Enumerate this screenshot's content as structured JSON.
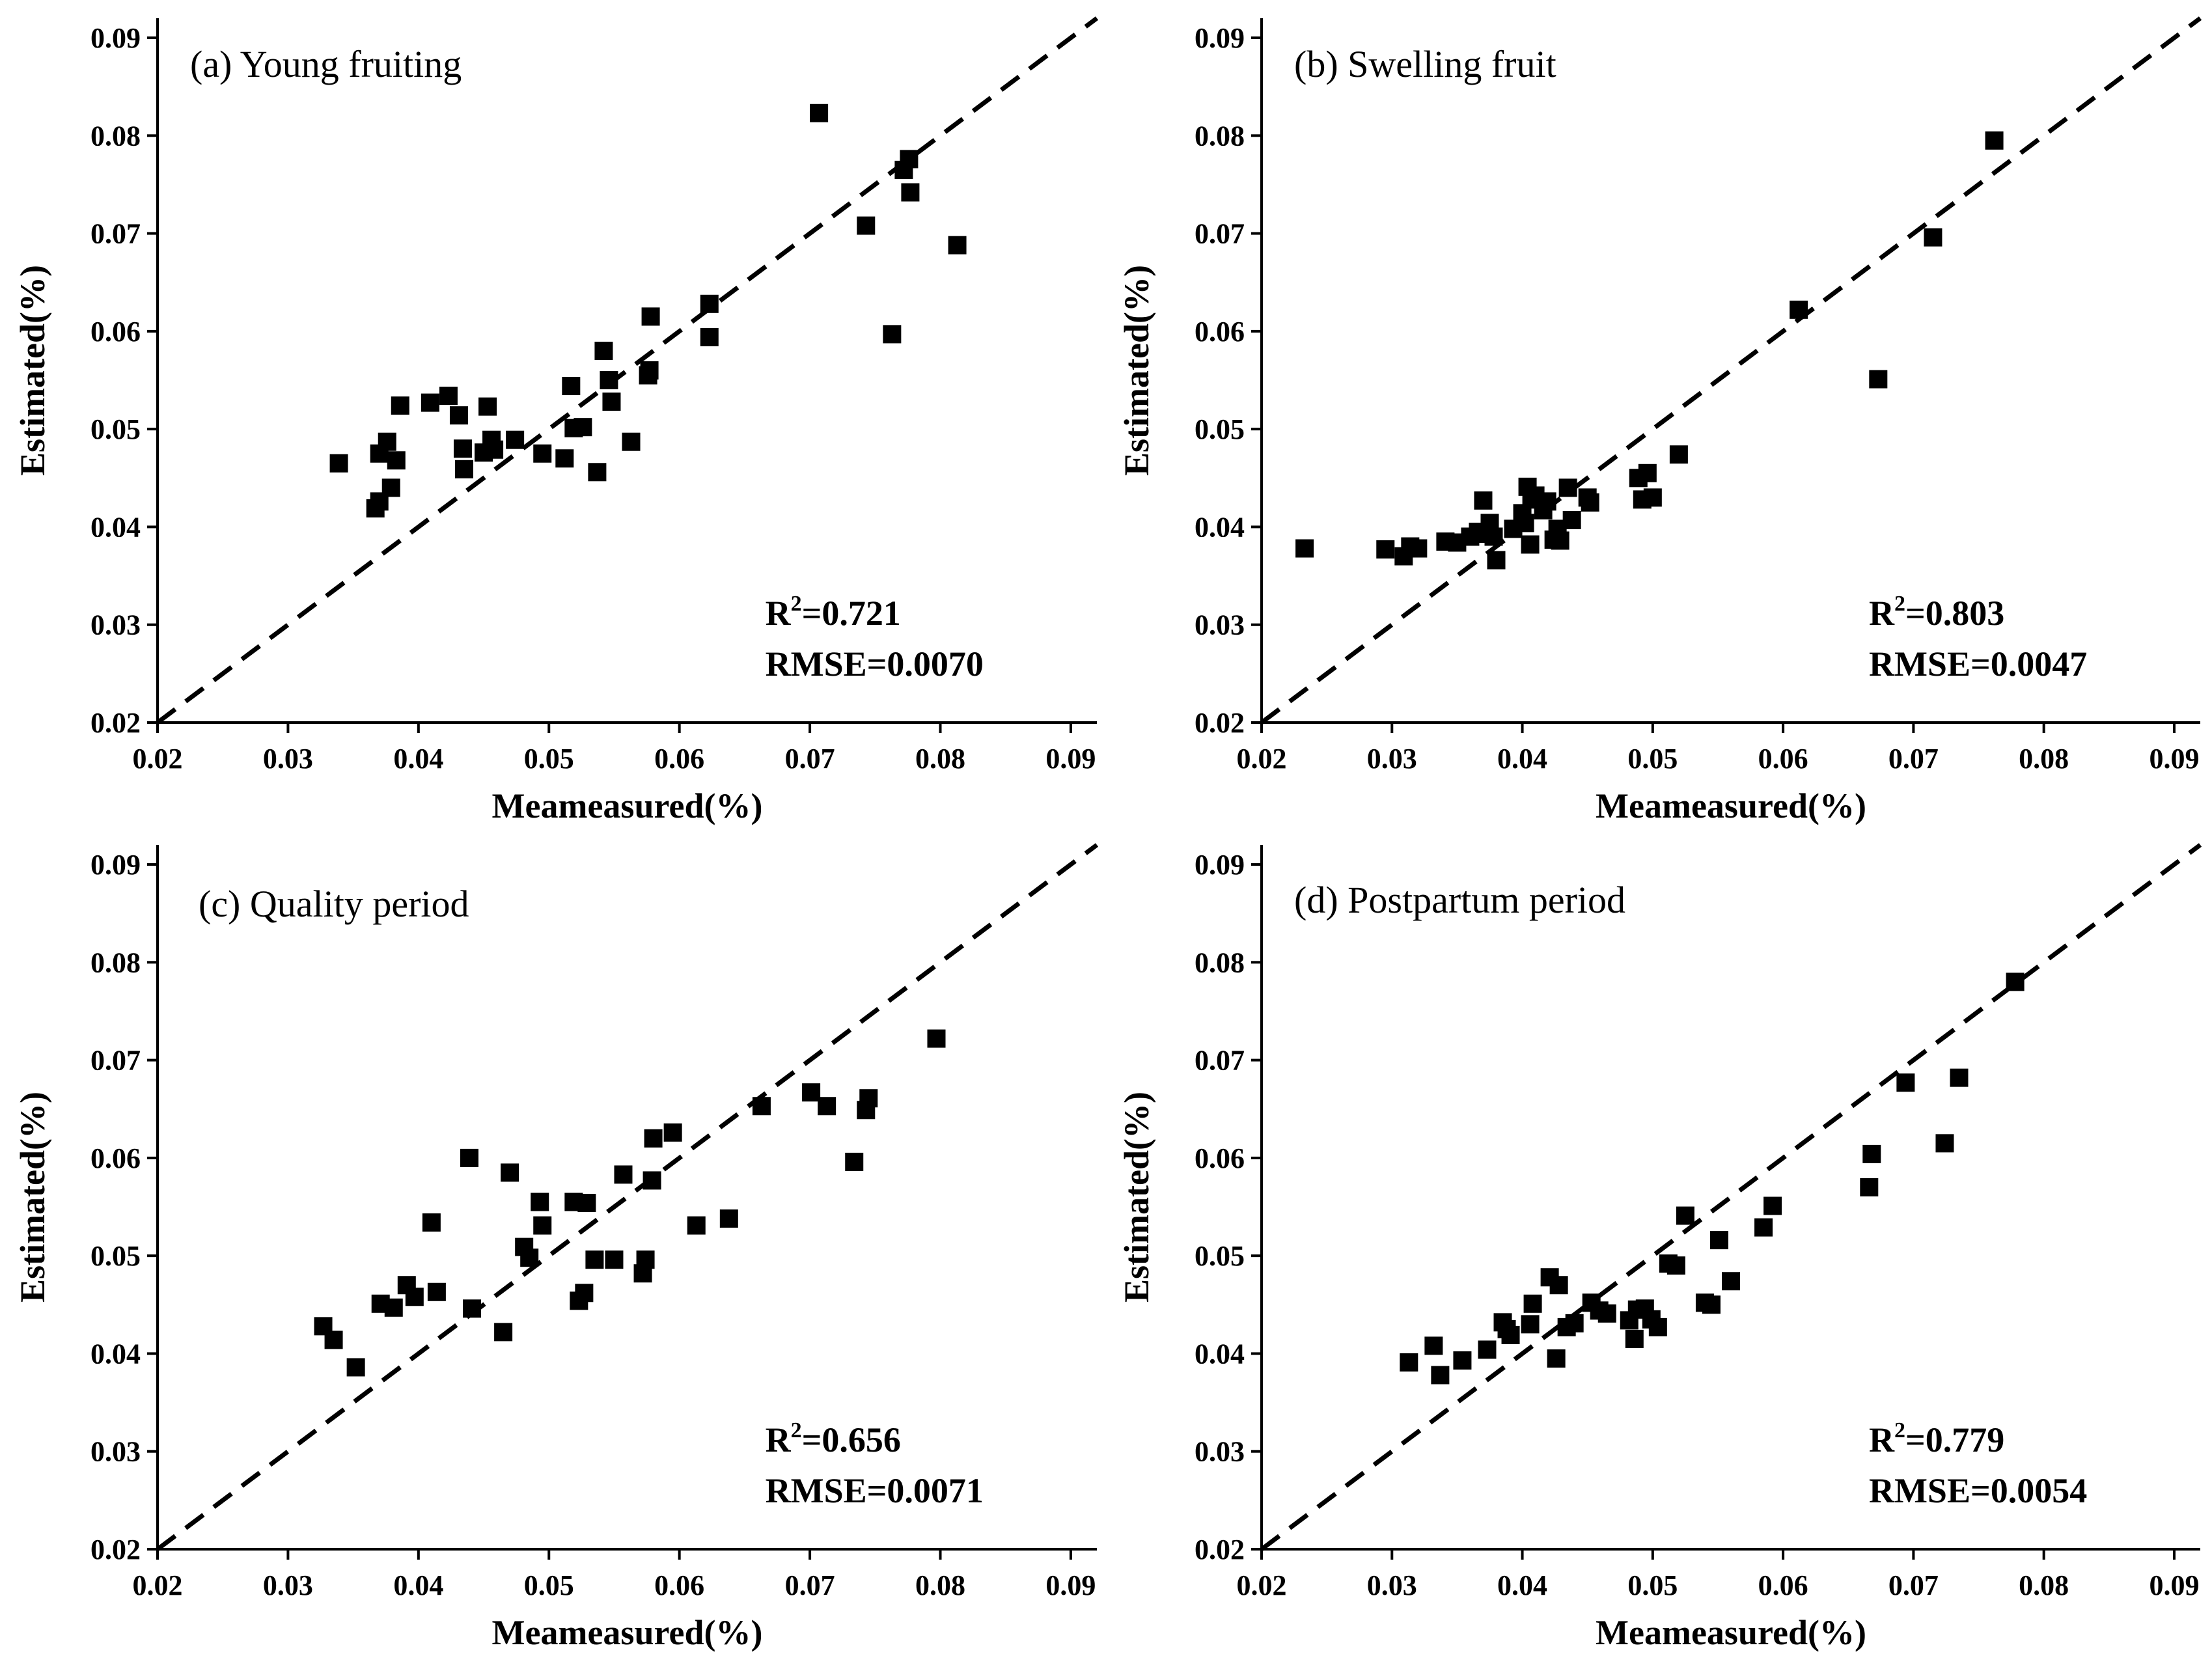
{
  "chart_data": [
    {
      "type": "scatter",
      "title": "(a) Young fruiting",
      "xlabel": "Meameasured(%)",
      "ylabel": "Estimated(%)",
      "xlim": [
        0.02,
        0.092
      ],
      "ylim": [
        0.02,
        0.092
      ],
      "xticks": [
        "0.02",
        "0.03",
        "0.04",
        "0.05",
        "0.06",
        "0.07",
        "0.08",
        "0.09"
      ],
      "yticks": [
        "0.02",
        "0.03",
        "0.04",
        "0.05",
        "0.06",
        "0.07",
        "0.08",
        "0.09"
      ],
      "reference_line": "1:1 dashed",
      "r2_label": "R",
      "r2_sup": "2",
      "r2_value": "=0.721",
      "rmse": "RMSE=0.0070",
      "points": [
        [
          0.0339,
          0.0465
        ],
        [
          0.0367,
          0.0419
        ],
        [
          0.037,
          0.0426
        ],
        [
          0.037,
          0.0475
        ],
        [
          0.0376,
          0.0487
        ],
        [
          0.0379,
          0.044
        ],
        [
          0.0383,
          0.0468
        ],
        [
          0.0386,
          0.0524
        ],
        [
          0.0409,
          0.0527
        ],
        [
          0.0423,
          0.0534
        ],
        [
          0.0431,
          0.0514
        ],
        [
          0.0434,
          0.048
        ],
        [
          0.0435,
          0.0459
        ],
        [
          0.045,
          0.0476
        ],
        [
          0.0453,
          0.0523
        ],
        [
          0.0456,
          0.0489
        ],
        [
          0.0458,
          0.0479
        ],
        [
          0.0474,
          0.0489
        ],
        [
          0.0495,
          0.0475
        ],
        [
          0.0512,
          0.047
        ],
        [
          0.0517,
          0.0544
        ],
        [
          0.0519,
          0.0501
        ],
        [
          0.0526,
          0.0502
        ],
        [
          0.0537,
          0.0456
        ],
        [
          0.0542,
          0.058
        ],
        [
          0.0546,
          0.055
        ],
        [
          0.0548,
          0.0528
        ],
        [
          0.0563,
          0.0487
        ],
        [
          0.0576,
          0.0555
        ],
        [
          0.0577,
          0.056
        ],
        [
          0.0578,
          0.0615
        ],
        [
          0.0623,
          0.0628
        ],
        [
          0.0623,
          0.0594
        ],
        [
          0.0707,
          0.0823
        ],
        [
          0.0743,
          0.0708
        ],
        [
          0.0763,
          0.0597
        ],
        [
          0.0772,
          0.0765
        ],
        [
          0.0776,
          0.0776
        ],
        [
          0.0777,
          0.0742
        ],
        [
          0.0813,
          0.0688
        ]
      ]
    },
    {
      "type": "scatter",
      "title": "(b) Swelling fruit",
      "xlabel": "Meameasured(%)",
      "ylabel": "Estimated(%)",
      "xlim": [
        0.02,
        0.092
      ],
      "ylim": [
        0.02,
        0.092
      ],
      "xticks": [
        "0.02",
        "0.03",
        "0.04",
        "0.05",
        "0.06",
        "0.07",
        "0.08",
        "0.09"
      ],
      "yticks": [
        "0.02",
        "0.03",
        "0.04",
        "0.05",
        "0.06",
        "0.07",
        "0.08",
        "0.09"
      ],
      "reference_line": "1:1 dashed",
      "r2_label": "R",
      "r2_sup": "2",
      "r2_value": "=0.803",
      "rmse": "RMSE=0.0047",
      "points": [
        [
          0.0233,
          0.0378
        ],
        [
          0.0295,
          0.0377
        ],
        [
          0.0309,
          0.037
        ],
        [
          0.0314,
          0.038
        ],
        [
          0.032,
          0.0378
        ],
        [
          0.0341,
          0.0385
        ],
        [
          0.035,
          0.0384
        ],
        [
          0.036,
          0.039
        ],
        [
          0.0366,
          0.0395
        ],
        [
          0.037,
          0.0427
        ],
        [
          0.0373,
          0.0393
        ],
        [
          0.0375,
          0.0404
        ],
        [
          0.0378,
          0.039
        ],
        [
          0.038,
          0.0366
        ],
        [
          0.0393,
          0.0398
        ],
        [
          0.04,
          0.0414
        ],
        [
          0.0402,
          0.0404
        ],
        [
          0.0404,
          0.0441
        ],
        [
          0.0406,
          0.0382
        ],
        [
          0.0407,
          0.0428
        ],
        [
          0.041,
          0.0432
        ],
        [
          0.0416,
          0.0417
        ],
        [
          0.0419,
          0.0426
        ],
        [
          0.0424,
          0.0387
        ],
        [
          0.0427,
          0.0398
        ],
        [
          0.0429,
          0.0386
        ],
        [
          0.0435,
          0.044
        ],
        [
          0.0438,
          0.0407
        ],
        [
          0.045,
          0.043
        ],
        [
          0.0452,
          0.0425
        ],
        [
          0.0489,
          0.045
        ],
        [
          0.0492,
          0.0428
        ],
        [
          0.0496,
          0.0455
        ],
        [
          0.05,
          0.043
        ],
        [
          0.052,
          0.0474
        ],
        [
          0.0612,
          0.0622
        ],
        [
          0.0673,
          0.0551
        ],
        [
          0.0715,
          0.0696
        ],
        [
          0.0762,
          0.0795
        ]
      ]
    },
    {
      "type": "scatter",
      "title": "(c) Quality period",
      "xlabel": "Meameasured(%)",
      "ylabel": "Estimated(%)",
      "xlim": [
        0.02,
        0.092
      ],
      "ylim": [
        0.02,
        0.092
      ],
      "xticks": [
        "0.02",
        "0.03",
        "0.04",
        "0.05",
        "0.06",
        "0.07",
        "0.08",
        "0.09"
      ],
      "yticks": [
        "0.02",
        "0.03",
        "0.04",
        "0.05",
        "0.06",
        "0.07",
        "0.08",
        "0.09"
      ],
      "reference_line": "1:1 dashed",
      "r2_label": "R",
      "r2_sup": "2",
      "r2_value": "=0.656",
      "rmse": "RMSE=0.0071",
      "points": [
        [
          0.0327,
          0.0428
        ],
        [
          0.0335,
          0.0414
        ],
        [
          0.0352,
          0.0386
        ],
        [
          0.0371,
          0.0451
        ],
        [
          0.0381,
          0.0447
        ],
        [
          0.0391,
          0.047
        ],
        [
          0.0397,
          0.0458
        ],
        [
          0.041,
          0.0534
        ],
        [
          0.0414,
          0.0463
        ],
        [
          0.0439,
          0.06
        ],
        [
          0.0441,
          0.0446
        ],
        [
          0.0465,
          0.0422
        ],
        [
          0.047,
          0.0585
        ],
        [
          0.0481,
          0.0509
        ],
        [
          0.0485,
          0.0498
        ],
        [
          0.0493,
          0.0555
        ],
        [
          0.0495,
          0.0531
        ],
        [
          0.0519,
          0.0555
        ],
        [
          0.0523,
          0.0454
        ],
        [
          0.0527,
          0.0462
        ],
        [
          0.0529,
          0.0554
        ],
        [
          0.0535,
          0.0496
        ],
        [
          0.055,
          0.0496
        ],
        [
          0.0557,
          0.0583
        ],
        [
          0.0572,
          0.0482
        ],
        [
          0.0574,
          0.0496
        ],
        [
          0.0579,
          0.0577
        ],
        [
          0.058,
          0.062
        ],
        [
          0.0595,
          0.0626
        ],
        [
          0.0613,
          0.0531
        ],
        [
          0.0638,
          0.0538
        ],
        [
          0.0663,
          0.0653
        ],
        [
          0.0701,
          0.0667
        ],
        [
          0.0713,
          0.0653
        ],
        [
          0.0734,
          0.0596
        ],
        [
          0.0743,
          0.0649
        ],
        [
          0.0745,
          0.0661
        ],
        [
          0.0797,
          0.0722
        ]
      ]
    },
    {
      "type": "scatter",
      "title": "(d) Postpartum period",
      "xlabel": "Meameasured(%)",
      "ylabel": "Estimated(%)",
      "xlim": [
        0.02,
        0.092
      ],
      "ylim": [
        0.02,
        0.092
      ],
      "xticks": [
        "0.02",
        "0.03",
        "0.04",
        "0.05",
        "0.06",
        "0.07",
        "0.08",
        "0.09"
      ],
      "yticks": [
        "0.02",
        "0.03",
        "0.04",
        "0.05",
        "0.06",
        "0.07",
        "0.08",
        "0.09"
      ],
      "reference_line": "1:1 dashed",
      "r2_label": "R",
      "r2_sup": "2",
      "r2_value": "=0.779",
      "rmse": "RMSE=0.0054",
      "points": [
        [
          0.0313,
          0.0391
        ],
        [
          0.0332,
          0.0408
        ],
        [
          0.0337,
          0.0378
        ],
        [
          0.0354,
          0.0393
        ],
        [
          0.0373,
          0.0404
        ],
        [
          0.0385,
          0.0432
        ],
        [
          0.0388,
          0.0425
        ],
        [
          0.0391,
          0.0419
        ],
        [
          0.0406,
          0.043
        ],
        [
          0.0408,
          0.0451
        ],
        [
          0.0421,
          0.0478
        ],
        [
          0.0426,
          0.0395
        ],
        [
          0.0428,
          0.047
        ],
        [
          0.0434,
          0.0427
        ],
        [
          0.044,
          0.0431
        ],
        [
          0.0453,
          0.0452
        ],
        [
          0.0459,
          0.0444
        ],
        [
          0.0465,
          0.0441
        ],
        [
          0.0482,
          0.0434
        ],
        [
          0.0486,
          0.0415
        ],
        [
          0.0488,
          0.0445
        ],
        [
          0.0494,
          0.0446
        ],
        [
          0.0499,
          0.0435
        ],
        [
          0.0504,
          0.0427
        ],
        [
          0.0512,
          0.0492
        ],
        [
          0.0518,
          0.049
        ],
        [
          0.0525,
          0.0541
        ],
        [
          0.054,
          0.0452
        ],
        [
          0.0545,
          0.045
        ],
        [
          0.0551,
          0.0516
        ],
        [
          0.056,
          0.0474
        ],
        [
          0.0585,
          0.0529
        ],
        [
          0.0592,
          0.0551
        ],
        [
          0.0666,
          0.057
        ],
        [
          0.0668,
          0.0604
        ],
        [
          0.0694,
          0.0677
        ],
        [
          0.0724,
          0.0615
        ],
        [
          0.0735,
          0.0682
        ],
        [
          0.0778,
          0.078
        ]
      ]
    }
  ]
}
